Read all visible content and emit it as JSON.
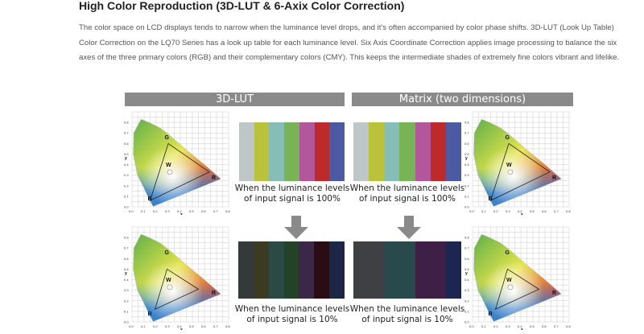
{
  "title": "High Color Reproduction (3D-LUT & 6-Axix Color Correction)",
  "paragraph": "The color space on LCD displays tends to narrow when the luminance level drops, and it's often accompanied by color phase shifts. 3D-LUT (Look Up Table) Color Correction on the LQ70 Series has a look up table for each luminance level. Six Axis Coordinate Correction applies image processing to balance the six axes of the three primary colors (RGB) and their complementary colors (CMY). This keeps the intermediate shades of extremely fine colors vibrant and lifelike.",
  "figure": {
    "left_header": "3D-LUT",
    "right_header": "Matrix (two dimensions)",
    "caption_100": "When the luminance levels of input signal is 100%",
    "caption_10": "When the luminance levels of input signal is 10%",
    "bars_100": [
      "#bfc6c8",
      "#b9c23a",
      "#86bdb6",
      "#78b456",
      "#b2579a",
      "#bc2a2c",
      "#4c5aa2"
    ],
    "left_bars_10": [
      "#34393a",
      "#3b3a22",
      "#2c4a44",
      "#254229",
      "#3b2747",
      "#2a0d14",
      "#1d2646"
    ],
    "right_bars_10": [
      "#3e4044",
      "#3e4044",
      "#284a4c",
      "#284a4c",
      "#3e1f45",
      "#3e1f45",
      "#1d2650"
    ],
    "chart_labels": {
      "G": "G",
      "W": "W",
      "R": "R",
      "B": "B",
      "x_axis": "x",
      "y_axis": "y"
    },
    "ticks": [
      "0.0",
      "0.1",
      "0.2",
      "0.3",
      "0.4",
      "0.5",
      "0.6",
      "0.7",
      "0.8"
    ],
    "arrow_color": "#8a8a8a"
  }
}
